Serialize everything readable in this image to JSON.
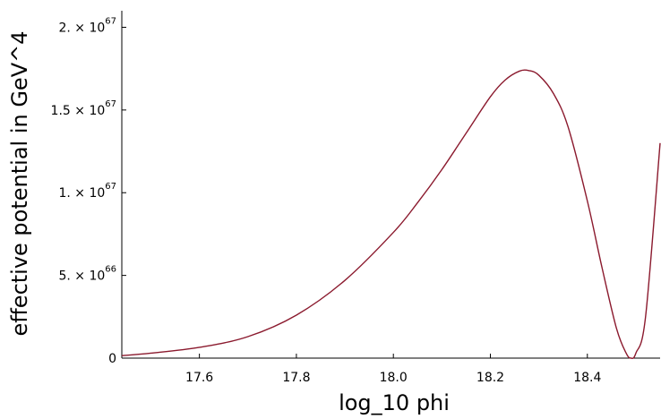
{
  "chart_data": {
    "type": "line",
    "xlabel": "log_10 phi",
    "ylabel": "effective potential in GeV^4",
    "xlim": [
      17.44,
      18.55
    ],
    "ylim": [
      0,
      2.1e+67
    ],
    "x_ticks": [
      {
        "value": 17.6,
        "label": "17.6"
      },
      {
        "value": 17.8,
        "label": "17.8"
      },
      {
        "value": 18.0,
        "label": "18.0"
      },
      {
        "value": 18.2,
        "label": "18.2"
      },
      {
        "value": 18.4,
        "label": "18.4"
      }
    ],
    "y_ticks": [
      {
        "value": 0,
        "label": "0",
        "mantissa": "",
        "exponent": ""
      },
      {
        "value": 5e+66,
        "label": "5. × 10^66",
        "mantissa": "5. × 10",
        "exponent": "66"
      },
      {
        "value": 1e+67,
        "label": "1. × 10^67",
        "mantissa": "1. × 10",
        "exponent": "67"
      },
      {
        "value": 1.5e+67,
        "label": "1.5 × 10^67",
        "mantissa": "1.5 × 10",
        "exponent": "67"
      },
      {
        "value": 2e+67,
        "label": "2. × 10^67",
        "mantissa": "2. × 10",
        "exponent": "67"
      }
    ],
    "grid": false,
    "series": [
      {
        "color": "#8b1a2e",
        "x": [
          17.44,
          17.5,
          17.6,
          17.7,
          17.8,
          17.9,
          18.0,
          18.05,
          18.1,
          18.15,
          18.2,
          18.23,
          18.26,
          18.28,
          18.3,
          18.33,
          18.36,
          18.4,
          18.43,
          18.46,
          18.48,
          18.49,
          18.5,
          18.52,
          18.55
        ],
        "y": [
          1.5e+65,
          3e+65,
          6.5e+65,
          1.3e+66,
          2.6e+66,
          4.7e+66,
          7.6e+66,
          9.4e+66,
          1.14e+67,
          1.36e+67,
          1.58e+67,
          1.68e+67,
          1.735e+67,
          1.738e+67,
          1.71e+67,
          1.6e+67,
          1.4e+67,
          9.5e+66,
          5.5e+66,
          1.8e+66,
          3e+65,
          0,
          3e+65,
          2.5e+66,
          1.3e+67
        ]
      }
    ]
  }
}
